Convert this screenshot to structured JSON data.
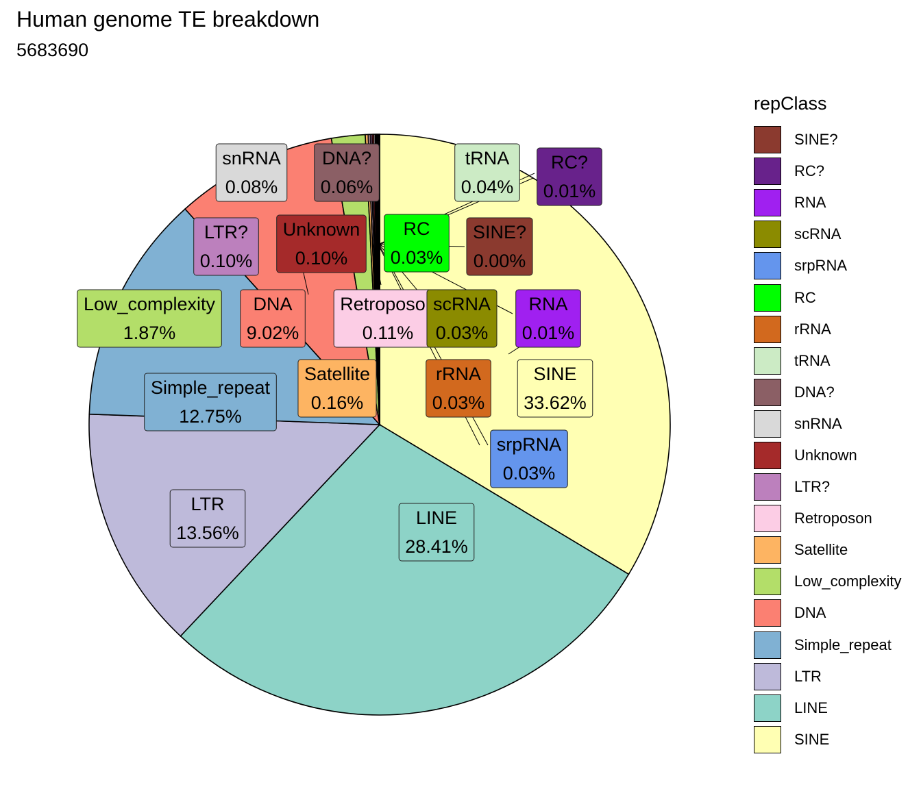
{
  "title": "Human genome TE breakdown",
  "subtitle": "5683690",
  "legend": {
    "title": "repClass"
  },
  "chart_data": {
    "type": "pie",
    "title": "Human genome TE breakdown",
    "subtitle": "5683690",
    "legend_title": "repClass",
    "legend_position": "right",
    "start_angle_deg": 0,
    "direction": "clockwise",
    "slices": [
      {
        "name": "SINE",
        "value": 33.62,
        "label": "33.62%",
        "color": "#FFFFB3",
        "text_color": "#000000"
      },
      {
        "name": "LINE",
        "value": 28.41,
        "label": "28.41%",
        "color": "#8DD3C7",
        "text_color": "#000000"
      },
      {
        "name": "LTR",
        "value": 13.56,
        "label": "13.56%",
        "color": "#BEBADA",
        "text_color": "#000000"
      },
      {
        "name": "Simple_repeat",
        "value": 12.75,
        "label": "12.75%",
        "color": "#80B1D3",
        "text_color": "#000000"
      },
      {
        "name": "DNA",
        "value": 9.02,
        "label": "9.02%",
        "color": "#FB8072",
        "text_color": "#000000"
      },
      {
        "name": "Low_complexity",
        "value": 1.87,
        "label": "1.87%",
        "color": "#B3DE69",
        "text_color": "#000000"
      },
      {
        "name": "Satellite",
        "value": 0.16,
        "label": "0.16%",
        "color": "#FDB462",
        "text_color": "#000000"
      },
      {
        "name": "Retroposon",
        "value": 0.11,
        "label": "0.11%",
        "color": "#FCCDE5",
        "text_color": "#000000"
      },
      {
        "name": "LTR?",
        "value": 0.1,
        "label": "0.10%",
        "color": "#BC80BD",
        "text_color": "#000000"
      },
      {
        "name": "Unknown",
        "value": 0.1,
        "label": "0.10%",
        "color": "#A52A2A",
        "text_color": "#000000"
      },
      {
        "name": "snRNA",
        "value": 0.08,
        "label": "0.08%",
        "color": "#D9D9D9",
        "text_color": "#000000"
      },
      {
        "name": "DNA?",
        "value": 0.06,
        "label": "0.06%",
        "color": "#8B5F65",
        "text_color": "#000000"
      },
      {
        "name": "tRNA",
        "value": 0.04,
        "label": "0.04%",
        "color": "#CCEBC5",
        "text_color": "#000000"
      },
      {
        "name": "rRNA",
        "value": 0.03,
        "label": "0.03%",
        "color": "#D2691E",
        "text_color": "#000000"
      },
      {
        "name": "RC",
        "value": 0.03,
        "label": "0.03%",
        "color": "#00FF00",
        "text_color": "#000000"
      },
      {
        "name": "srpRNA",
        "value": 0.03,
        "label": "0.03%",
        "color": "#6495ED",
        "text_color": "#000000"
      },
      {
        "name": "scRNA",
        "value": 0.03,
        "label": "0.03%",
        "color": "#8B8B00",
        "text_color": "#000000"
      },
      {
        "name": "RNA",
        "value": 0.01,
        "label": "0.01%",
        "color": "#A020F0",
        "text_color": "#000000"
      },
      {
        "name": "RC?",
        "value": 0.01,
        "label": "0.01%",
        "color": "#68228B",
        "text_color": "#000000"
      },
      {
        "name": "SINE?",
        "value": 0.0,
        "label": "0.00%",
        "color": "#8B3A2F",
        "text_color": "#000000"
      }
    ]
  }
}
